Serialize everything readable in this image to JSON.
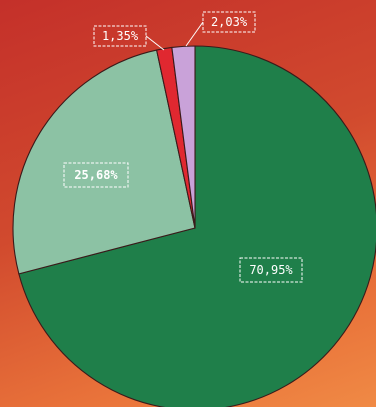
{
  "chart_data": {
    "type": "pie",
    "slices": [
      {
        "label": "70,95%",
        "value": 70.95,
        "color": "#1f7f4a"
      },
      {
        "label": "25,68%",
        "value": 25.68,
        "color": "#8cc2a4"
      },
      {
        "label": "1,35%",
        "value": 1.35,
        "color": "#e02830"
      },
      {
        "label": "2,03%",
        "value": 2.03,
        "color": "#c9a2d9"
      }
    ],
    "start_angle_deg": 0,
    "direction": "clockwise",
    "legend": "none"
  }
}
